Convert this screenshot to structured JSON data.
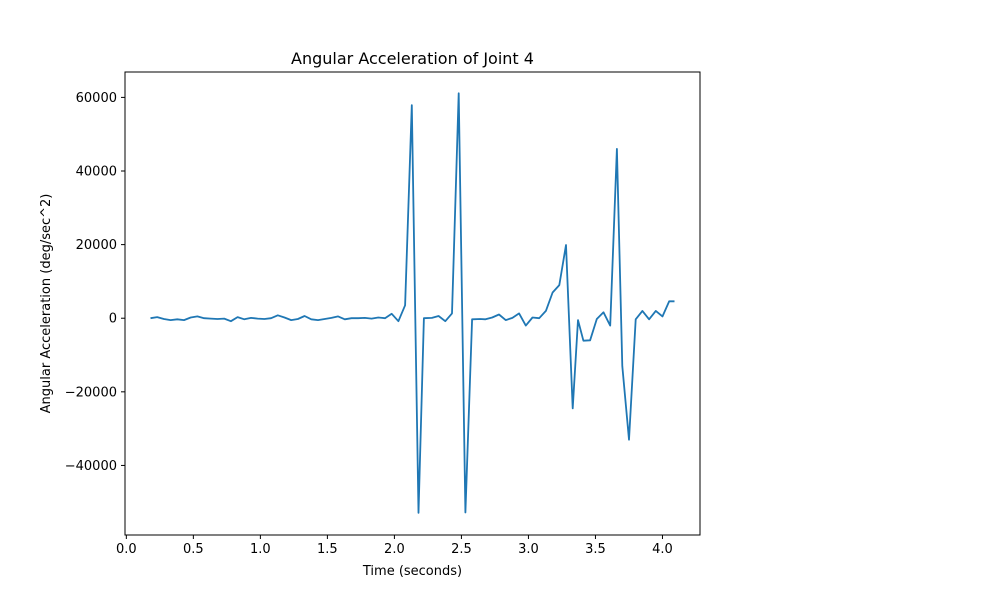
{
  "chart_data": {
    "type": "line",
    "title": "Angular Acceleration of Joint 4",
    "xlabel": "Time (seconds)",
    "ylabel": "Angular Acceleration (deg/sec^2)",
    "xlim": [
      -0.01,
      4.28
    ],
    "ylim": [
      -58900,
      66900
    ],
    "xticks": [
      0.0,
      0.5,
      1.0,
      1.5,
      2.0,
      2.5,
      3.0,
      3.5,
      4.0
    ],
    "xtick_labels": [
      "0.0",
      "0.5",
      "1.0",
      "1.5",
      "2.0",
      "2.5",
      "3.0",
      "3.5",
      "4.0"
    ],
    "yticks": [
      -40000,
      -20000,
      0,
      20000,
      40000,
      60000
    ],
    "ytick_labels": [
      "−40000",
      "−20000",
      "0",
      "20000",
      "40000",
      "60000"
    ],
    "grid": false,
    "color": "#1f77b4",
    "series": [
      {
        "x": [
          0.18,
          0.23,
          0.28,
          0.33,
          0.38,
          0.43,
          0.48,
          0.53,
          0.58,
          0.63,
          0.68,
          0.73,
          0.78,
          0.83,
          0.88,
          0.93,
          0.98,
          1.03,
          1.08,
          1.13,
          1.18,
          1.23,
          1.28,
          1.33,
          1.38,
          1.43,
          1.48,
          1.53,
          1.58,
          1.63,
          1.68,
          1.73,
          1.78,
          1.83,
          1.88,
          1.93,
          1.98,
          2.03,
          2.08,
          2.13,
          2.18,
          2.22,
          2.28,
          2.33,
          2.38,
          2.43,
          2.48,
          2.53,
          2.58,
          2.64,
          2.68,
          2.73,
          2.78,
          2.83,
          2.88,
          2.93,
          2.98,
          3.03,
          3.08,
          3.13,
          3.18,
          3.23,
          3.28,
          3.33,
          3.37,
          3.41,
          3.46,
          3.51,
          3.56,
          3.61,
          3.66,
          3.7,
          3.75,
          3.8,
          3.85,
          3.9,
          3.95,
          4.0,
          4.05,
          4.09
        ],
        "y": [
          0,
          300,
          -200,
          -500,
          -300,
          -500,
          200,
          500,
          0,
          -100,
          -200,
          -100,
          -800,
          300,
          -300,
          100,
          -100,
          -200,
          0,
          800,
          200,
          -500,
          -200,
          600,
          -300,
          -500,
          -200,
          100,
          500,
          -300,
          0,
          0,
          100,
          -100,
          200,
          0,
          1200,
          -800,
          3500,
          57900,
          -52900,
          0,
          100,
          600,
          -800,
          1300,
          61100,
          -52800,
          -300,
          -200,
          -300,
          200,
          1000,
          -500,
          100,
          1300,
          -2000,
          200,
          0,
          2000,
          7000,
          9000,
          19900,
          -24500,
          -500,
          -6100,
          -6000,
          -200,
          1600,
          -2000,
          46000,
          -13000,
          -33000,
          -300,
          2000,
          -300,
          2000,
          500,
          4600,
          4600
        ]
      }
    ]
  }
}
